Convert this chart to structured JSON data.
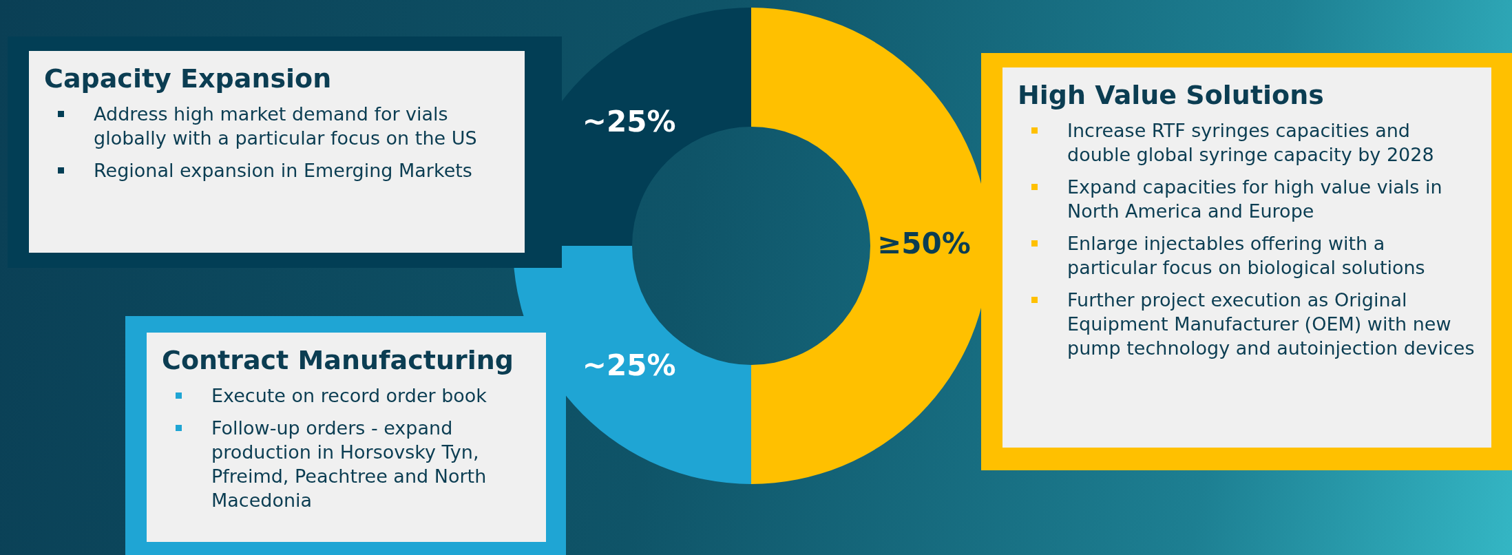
{
  "chart_data": [
    {
      "type": "donut",
      "categories": [
        null,
        null,
        null
      ],
      "values": [
        50,
        25,
        25
      ],
      "colors": [
        "#ffc000",
        "#1fa5d4",
        "#023e55"
      ],
      "value_labels": [
        "≥50%",
        "~25%",
        "~25%"
      ]
    },
    {
      "type": "other",
      "title": "Capacity Expansion",
      "color": "#023e55",
      "annotations": [
        "Address high market demand for vials globally with a particular focus on the US",
        "Regional expansion in Emerging Markets"
      ]
    },
    {
      "type": "other",
      "title": "Contract Manufacturing",
      "color": "#1fa5d4",
      "annotations": [
        "Execute on record order book",
        "Follow-up orders - expand production in Horsovsky Tyn, Pfreimd, Peachtree and North Macedonia"
      ]
    },
    {
      "type": "other",
      "title": "High Value Solutions",
      "color": "#ffc000",
      "annotations": [
        "Increase RTF syringes capacities and double global syringe capacity by 2028",
        "Expand capacities for high value vials in North America and Europe",
        "Enlarge injectables offering with a particular focus on biological solutions",
        "Further project execution as Original Equipment Manufacturer (OEM) with new pump technology and autoinjection devices"
      ]
    }
  ]
}
